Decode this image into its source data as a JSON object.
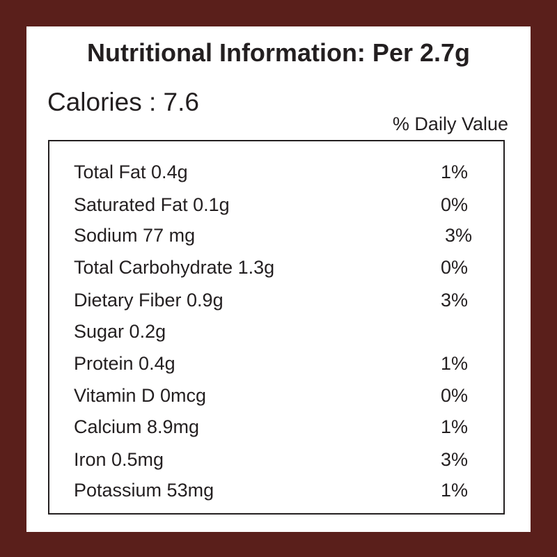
{
  "label": {
    "title": "Nutritional Information: Per 2.7g",
    "calories": "Calories : 7.6",
    "daily_value_header": "% Daily Value",
    "rows": [
      {
        "nutrient": "Total Fat 0.4g",
        "daily_value": "1%"
      },
      {
        "nutrient": "Saturated Fat 0.1g",
        "daily_value": "0%"
      },
      {
        "nutrient": "Sodium 77 mg",
        "daily_value": "3%"
      },
      {
        "nutrient": "Total Carbohydrate 1.3g",
        "daily_value": "0%"
      },
      {
        "nutrient": "Dietary Fiber 0.9g",
        "daily_value": "3%"
      },
      {
        "nutrient": "Sugar 0.2g",
        "daily_value": ""
      },
      {
        "nutrient": "Protein 0.4g",
        "daily_value": "1%"
      },
      {
        "nutrient": "Vitamin D 0mcg",
        "daily_value": "0%"
      },
      {
        "nutrient": "Calcium 8.9mg",
        "daily_value": "1%"
      },
      {
        "nutrient": "Iron 0.5mg",
        "daily_value": "3%"
      },
      {
        "nutrient": "Potassium 53mg",
        "daily_value": "1%"
      }
    ]
  },
  "colors": {
    "border": "#5a1f1b",
    "background": "#ffffff",
    "text": "#231f20"
  }
}
